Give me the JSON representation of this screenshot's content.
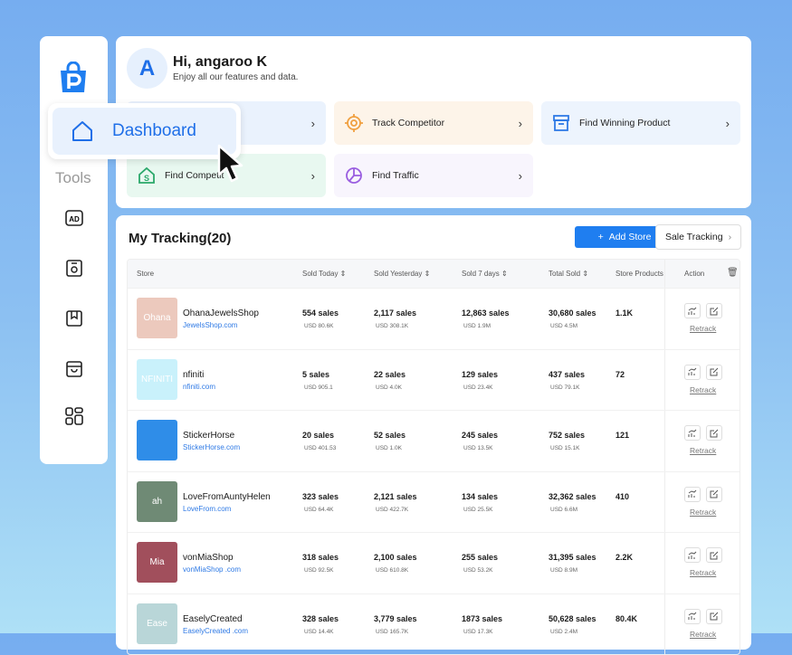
{
  "sidebar": {
    "tools_label": "Tools",
    "icons": [
      "ad-icon",
      "store-target-icon",
      "bookmark-icon",
      "shopping-bag-icon",
      "grid-icon"
    ]
  },
  "header": {
    "avatar_letter": "A",
    "greeting": "Hi, angaroo K",
    "subtitle": "Enjoy all our features and data."
  },
  "quick_links": [
    {
      "label": "",
      "icon": "",
      "bg": "#eaf2fd"
    },
    {
      "label": "Track Competitor",
      "icon": "target-icon",
      "bg": "#fdf4e9"
    },
    {
      "label": "Find Winning Product",
      "icon": "archive-box-icon",
      "bg": "#edf4fd"
    },
    {
      "label": "Find Competit",
      "icon": "store-dollar-icon",
      "bg": "#e8f8f0"
    },
    {
      "label": "Find Traffic",
      "icon": "pie-chart-icon",
      "bg": "#f8f5fd"
    }
  ],
  "dashboard_popup": {
    "label": "Dashboard"
  },
  "tracking": {
    "title": "My Tracking(20)",
    "add_store": "Add Store",
    "sale_tracking": "Sale Tracking",
    "columns": [
      "Store",
      "Sold Today",
      "Sold Yesterday",
      "Sold 7 days",
      "Total Sold",
      "Store Products",
      "Action"
    ],
    "retrack": "Retrack",
    "rows": [
      {
        "name": "OhanaJewelsShop",
        "url": "JewelsShop.com",
        "thumb": "Ohana",
        "thumb_bg": "#ecc9bd",
        "today": "554 sales",
        "today_usd": "USD 80.6K",
        "yest": "2,117 sales",
        "yest_usd": "USD 308.1K",
        "week": "12,863 sales",
        "week_usd": "USD 1.9M",
        "total": "30,680 sales",
        "total_usd": "USD 4.5M",
        "products": "1.1K"
      },
      {
        "name": "nfiniti",
        "url": "nfiniti.com",
        "thumb": "NFINITI",
        "thumb_bg": "#c9f1fb",
        "today": "5 sales",
        "today_usd": "USD 905.1",
        "yest": "22 sales",
        "yest_usd": "USD 4.0K",
        "week": "129 sales",
        "week_usd": "USD 23.4K",
        "total": "437 sales",
        "total_usd": "USD 79.1K",
        "products": "72"
      },
      {
        "name": "StickerHorse",
        "url": "StickerHorse.com",
        "thumb": "",
        "thumb_bg": "#2f8de8",
        "today": "20 sales",
        "today_usd": "USD 401.53",
        "yest": "52 sales",
        "yest_usd": "USD 1.0K",
        "week": "245 sales",
        "week_usd": "USD 13.5K",
        "total": "752 sales",
        "total_usd": "USD 15.1K",
        "products": "121"
      },
      {
        "name": "LoveFromAuntyHelen",
        "url": "LoveFrom.com",
        "thumb": "ah",
        "thumb_bg": "#6f8a75",
        "today": "323 sales",
        "today_usd": "USD 64.4K",
        "yest": "2,121 sales",
        "yest_usd": "USD 422.7K",
        "week": "134 sales",
        "week_usd": "USD 25.5K",
        "total": "32,362 sales",
        "total_usd": "USD 6.6M",
        "products": "410"
      },
      {
        "name": "vonMiaShop",
        "url": "vonMiaShop .com",
        "thumb": "Mia",
        "thumb_bg": "#a14f5c",
        "today": "318 sales",
        "today_usd": "USD 92.5K",
        "yest": "2,100 sales",
        "yest_usd": "USD 610.8K",
        "week": "255 sales",
        "week_usd": "USD 53.2K",
        "total": "31,395 sales",
        "total_usd": "USD 8.9M",
        "products": "2.2K"
      },
      {
        "name": "EaselyCreated",
        "url": "EaselyCreated .com",
        "thumb": "Ease",
        "thumb_bg": "#b9d6d8",
        "today": "328 sales",
        "today_usd": "USD 14.4K",
        "yest": "3,779 sales",
        "yest_usd": "USD 165.7K",
        "week": "1873 sales",
        "week_usd": "USD 17.3K",
        "total": "50,628 sales",
        "total_usd": "USD 2.4M",
        "products": "80.4K"
      }
    ]
  },
  "colors": {
    "accent": "#1f7ef0"
  }
}
